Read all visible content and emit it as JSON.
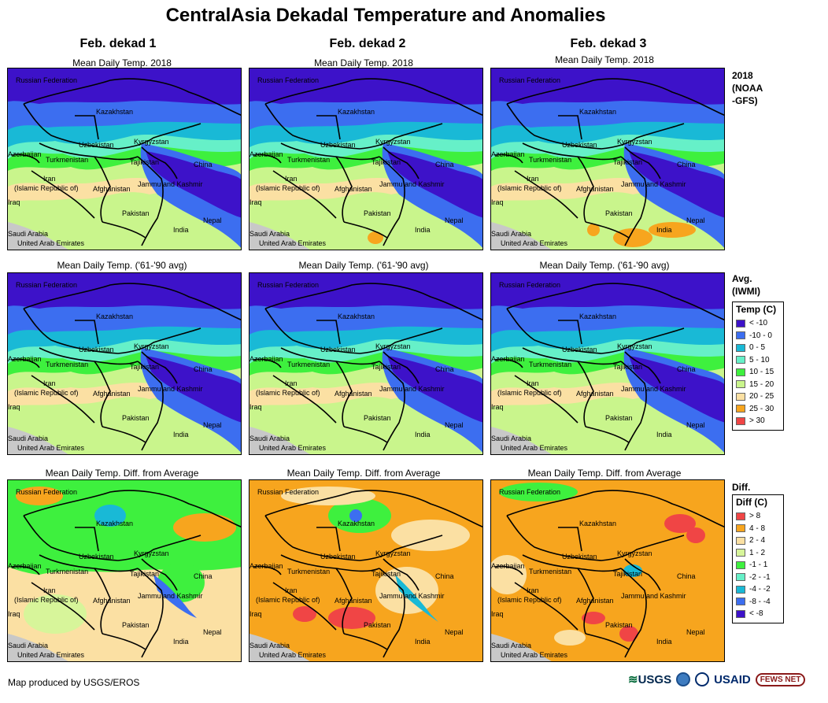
{
  "title": "CentralAsia Dekadal Temperature and Anomalies",
  "columns": [
    "Feb. dekad 1",
    "Feb. dekad 2",
    "Feb. dekad 3"
  ],
  "rows": [
    {
      "caption": "Mean Daily Temp. 2018",
      "label": "2018\n(NOAA\n-GFS)"
    },
    {
      "caption": "Mean Daily Temp. ('61-'90 avg)",
      "label": "Avg.\n(IWMI)"
    },
    {
      "caption": "Mean Daily Temp. Diff. from Average",
      "label": "Diff."
    }
  ],
  "map_labels": {
    "russia": "Russian Federation",
    "kazakhstan": "Kazakhstan",
    "uzbekistan": "Uzbekistan",
    "kyrgyzstan": "Kyrgyzstan",
    "azerbaijan": "Azerbaijan",
    "turkmenistan": "Turkmenistan",
    "tajikistan": "Tajikistan",
    "china": "China",
    "iran1": "Iran",
    "iran2": "(Islamic Republic of)",
    "afghanistan": "Afghanistan",
    "jammu": "Jammu and Kashmir",
    "iraq": "Iraq",
    "pakistan": "Pakistan",
    "india": "India",
    "nepal": "Nepal",
    "saudi": "Saudi Arabia",
    "uae": "United Arab Emirates"
  },
  "temp_legend": {
    "title": "Temp (C)",
    "items": [
      {
        "label": "< -10",
        "color": "#3d12c9"
      },
      {
        "label": "-10 - 0",
        "color": "#3c6ef0"
      },
      {
        "label": "0 - 5",
        "color": "#19b9d6"
      },
      {
        "label": "5 - 10",
        "color": "#66f0c8"
      },
      {
        "label": "10 - 15",
        "color": "#3ef03e"
      },
      {
        "label": "15 - 20",
        "color": "#c9f58c"
      },
      {
        "label": "20 - 25",
        "color": "#fbe0a3"
      },
      {
        "label": "25 - 30",
        "color": "#f7a51e"
      },
      {
        "label": "> 30",
        "color": "#f04545"
      }
    ]
  },
  "diff_legend": {
    "title": "Diff (C)",
    "items": [
      {
        "label": "> 8",
        "color": "#f04545"
      },
      {
        "label": "4 - 8",
        "color": "#f7a51e"
      },
      {
        "label": "2 - 4",
        "color": "#fbe0a3"
      },
      {
        "label": "1 - 2",
        "color": "#d7f59a"
      },
      {
        "label": "-1 - 1",
        "color": "#3ef03e"
      },
      {
        "label": "-2 - -1",
        "color": "#66f0c8"
      },
      {
        "label": "-4 - -2",
        "color": "#19b9d6"
      },
      {
        "label": "-8 - -4",
        "color": "#3c6ef0"
      },
      {
        "label": "< -8",
        "color": "#3d12c9"
      }
    ]
  },
  "credit": "Map produced by USGS/EROS",
  "logos": {
    "usgs": "USGS",
    "usaid": "USAID",
    "fews": "FEWS NET"
  }
}
